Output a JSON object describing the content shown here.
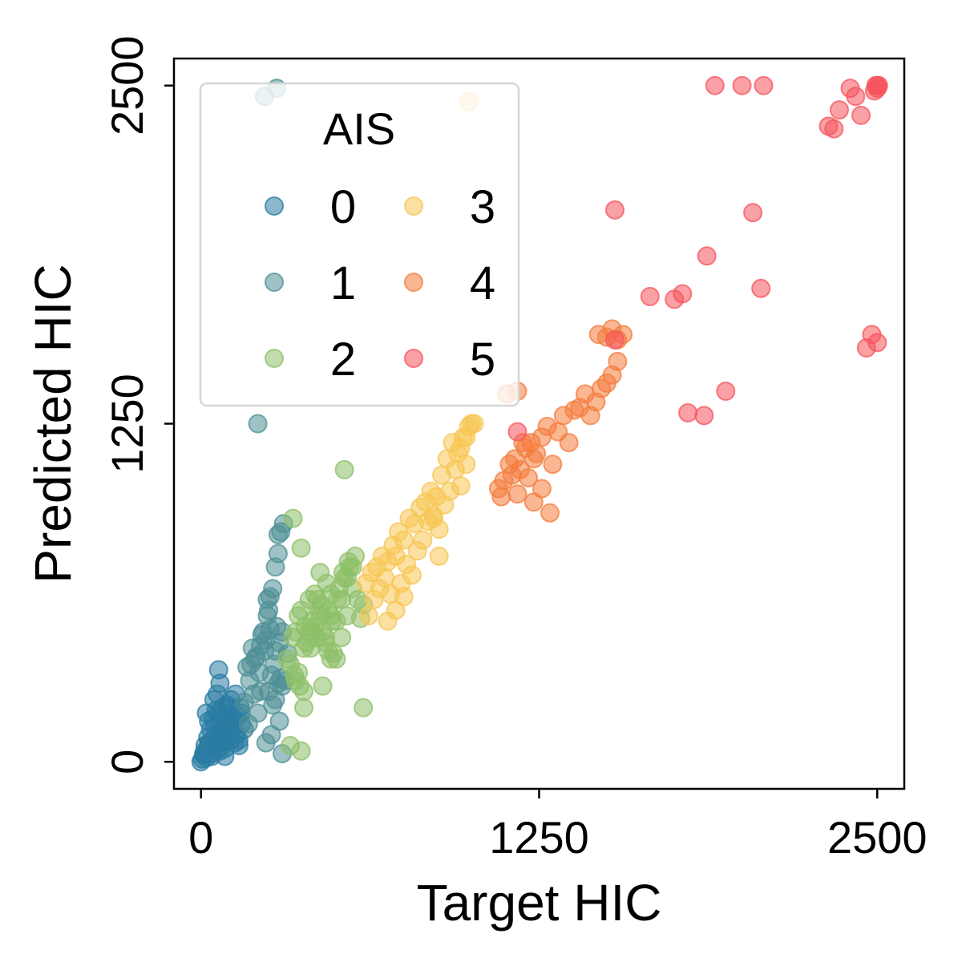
{
  "chart_data": {
    "type": "scatter",
    "title": "",
    "xlabel": "Target HIC",
    "ylabel": "Predicted HIC",
    "xlim": [
      -100,
      2600
    ],
    "ylim": [
      -100,
      2600
    ],
    "xticks": [
      0,
      1250,
      2500
    ],
    "yticks": [
      0,
      1250,
      2500
    ],
    "xtick_labels": [
      "0",
      "1250",
      "2500"
    ],
    "ytick_labels": [
      "0",
      "1250",
      "2500"
    ],
    "grid": false,
    "legend": {
      "title": "AIS",
      "placement": "top-left",
      "columns": 2
    },
    "series": [
      {
        "name": "0",
        "color": "#2a7ba2",
        "x": [
          0,
          5,
          10,
          15,
          20,
          30,
          40,
          50,
          60,
          70,
          80,
          90,
          100,
          110,
          120,
          130,
          140,
          150,
          20,
          35,
          55,
          75,
          95,
          115,
          135,
          25,
          45,
          65,
          85,
          105,
          125,
          145,
          160,
          10,
          30,
          50,
          70,
          90,
          110,
          60,
          80,
          100,
          120,
          140,
          40,
          65,
          15,
          28,
          48,
          68,
          88,
          108,
          128,
          148,
          70,
          65
        ],
        "y": [
          0,
          10,
          25,
          40,
          15,
          60,
          30,
          90,
          45,
          110,
          70,
          50,
          130,
          80,
          160,
          100,
          60,
          140,
          180,
          120,
          190,
          150,
          210,
          120,
          170,
          90,
          160,
          50,
          110,
          140,
          70,
          200,
          120,
          30,
          70,
          130,
          40,
          170,
          230,
          250,
          200,
          100,
          140,
          80,
          20,
          180,
          60,
          150,
          230,
          80,
          20,
          200,
          250,
          180,
          290,
          340
        ]
      },
      {
        "name": "1",
        "color": "#4e8f95",
        "x": [
          160,
          180,
          200,
          220,
          240,
          260,
          280,
          300,
          320,
          170,
          190,
          210,
          230,
          250,
          270,
          290,
          310,
          175,
          195,
          215,
          235,
          255,
          275,
          295,
          205,
          225,
          245,
          265,
          285,
          245,
          255,
          265,
          275,
          285,
          295,
          305,
          285,
          275,
          210,
          235,
          280,
          260,
          240,
          290,
          300,
          250,
          220,
          300,
          185
        ],
        "y": [
          220,
          300,
          380,
          260,
          450,
          320,
          500,
          280,
          400,
          350,
          420,
          180,
          480,
          260,
          360,
          440,
          300,
          140,
          250,
          330,
          410,
          490,
          230,
          310,
          390,
          470,
          540,
          210,
          290,
          600,
          610,
          640,
          720,
          770,
          850,
          880,
          840,
          410,
          1250,
          2460,
          2490,
          100,
          70,
          150,
          30,
          560,
          430,
          480,
          360
        ],
        "y_note_ignore": ""
      },
      {
        "name": "2",
        "color": "#8dbf68",
        "x": [
          320,
          340,
          360,
          380,
          400,
          420,
          440,
          460,
          480,
          500,
          520,
          540,
          560,
          580,
          330,
          350,
          370,
          390,
          410,
          430,
          450,
          470,
          490,
          510,
          530,
          550,
          570,
          345,
          365,
          385,
          405,
          425,
          445,
          465,
          485,
          505,
          525,
          545,
          360,
          380,
          400,
          420,
          440,
          460,
          480,
          500,
          520,
          540,
          560,
          590,
          600,
          330,
          370,
          350,
          450,
          380,
          410,
          440,
          470,
          480,
          370,
          340,
          530,
          600
        ],
        "y": [
          380,
          460,
          540,
          420,
          600,
          500,
          560,
          440,
          620,
          520,
          460,
          540,
          640,
          600,
          360,
          480,
          560,
          440,
          520,
          600,
          480,
          560,
          400,
          640,
          680,
          720,
          760,
          320,
          280,
          500,
          420,
          460,
          580,
          660,
          520,
          600,
          700,
          740,
          330,
          260,
          480,
          620,
          700,
          460,
          540,
          380,
          600,
          680,
          720,
          530,
          580,
          60,
          40,
          300,
          280,
          200,
          480,
          540,
          410,
          380,
          790,
          900,
          1080,
          200
        ],
        "y_note_ignore": ""
      },
      {
        "name": "3",
        "color": "#f7c653",
        "x": [
          610,
          630,
          650,
          670,
          690,
          710,
          730,
          750,
          770,
          790,
          810,
          830,
          850,
          870,
          890,
          910,
          930,
          950,
          970,
          990,
          620,
          640,
          660,
          680,
          700,
          720,
          740,
          760,
          780,
          800,
          820,
          840,
          860,
          880,
          900,
          940,
          960,
          980,
          690,
          720,
          750,
          860,
          880,
          920,
          960,
          980,
          1000,
          1010,
          990
        ],
        "y": [
          660,
          700,
          720,
          760,
          740,
          800,
          850,
          820,
          900,
          880,
          940,
          960,
          1000,
          980,
          1060,
          1120,
          1180,
          1140,
          1200,
          1240,
          540,
          600,
          640,
          680,
          620,
          760,
          660,
          730,
          690,
          780,
          820,
          890,
          910,
          860,
          950,
          1080,
          1020,
          1100,
          520,
          560,
          610,
          900,
          760,
          1000,
          1160,
          1200,
          1250,
          1250,
          2440
        ],
        "y_note_ignore": ""
      },
      {
        "name": "4",
        "color": "#f47c3c",
        "x": [
          1100,
          1120,
          1140,
          1160,
          1180,
          1200,
          1220,
          1240,
          1260,
          1280,
          1300,
          1320,
          1340,
          1360,
          1380,
          1400,
          1420,
          1440,
          1460,
          1480,
          1500,
          1520,
          1540,
          1110,
          1150,
          1170,
          1190,
          1210,
          1230,
          1260,
          1290,
          1470,
          1500,
          1520,
          1540,
          1560,
          1230,
          1170,
          1130
        ],
        "y": [
          1010,
          1040,
          1100,
          1120,
          1080,
          1160,
          1180,
          1140,
          1200,
          1240,
          1100,
          1220,
          1280,
          1180,
          1300,
          1310,
          1360,
          1280,
          1330,
          1380,
          1400,
          1430,
          1480,
          980,
          1060,
          990,
          1180,
          1050,
          1120,
          1010,
          920,
          1580,
          1570,
          1600,
          1560,
          1580,
          960,
          1370,
          1360
        ],
        "y_note_ignore": ""
      },
      {
        "name": "5",
        "color": "#f5545c",
        "x": [
          1170,
          1530,
          1660,
          1750,
          1780,
          1800,
          1860,
          1900,
          1940,
          2000,
          2040,
          2070,
          2080,
          2320,
          2340,
          2360,
          2400,
          2420,
          2440,
          2460,
          2480,
          2500,
          2500,
          2500,
          2490,
          2495,
          2505,
          1870,
          1530
        ],
        "y": [
          1220,
          2040,
          1720,
          1710,
          1730,
          1290,
          1280,
          2500,
          1370,
          2500,
          2030,
          1750,
          2500,
          2350,
          2340,
          2410,
          2490,
          2460,
          2390,
          1530,
          1580,
          1550,
          2500,
          2490,
          2480,
          2500,
          2500,
          1870,
          1560
        ],
        "y_note_ignore": ""
      }
    ]
  }
}
